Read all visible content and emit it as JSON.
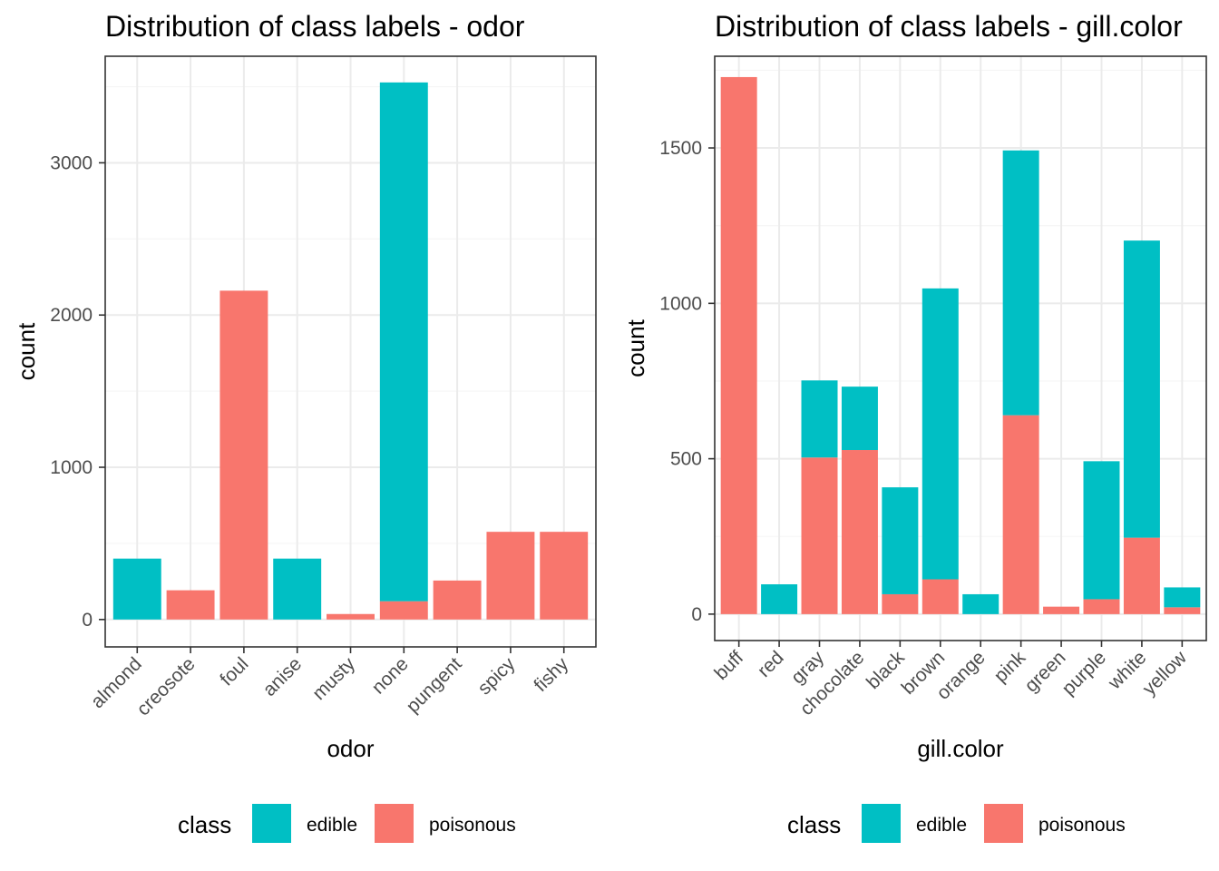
{
  "colors": {
    "edible": "#00BFC4",
    "poisonous": "#F8766D",
    "grid_major": "#ebebeb",
    "grid_minor": "#f5f5f5",
    "panel_border": "#333333"
  },
  "chart_data": [
    {
      "type": "bar",
      "stacked": true,
      "title": "Distribution of class labels - odor",
      "xlabel": "odor",
      "ylabel": "count",
      "ylim": [
        -180,
        3700
      ],
      "yticks": [
        0,
        1000,
        2000,
        3000
      ],
      "categories": [
        "almond",
        "creosote",
        "foul",
        "anise",
        "musty",
        "none",
        "pungent",
        "spicy",
        "fishy"
      ],
      "series": [
        {
          "name": "poisonous",
          "values": [
            0,
            192,
            2160,
            0,
            36,
            120,
            256,
            576,
            576
          ]
        },
        {
          "name": "edible",
          "values": [
            400,
            0,
            0,
            400,
            0,
            3408,
            0,
            0,
            0
          ]
        }
      ],
      "legend": {
        "title": "class",
        "position": "bottom",
        "items": [
          "edible",
          "poisonous"
        ]
      }
    },
    {
      "type": "bar",
      "stacked": true,
      "title": "Distribution of class labels - gill.color",
      "xlabel": "gill.color",
      "ylabel": "count",
      "ylim": [
        -85,
        1795
      ],
      "yticks": [
        0,
        500,
        1000,
        1500
      ],
      "categories": [
        "buff",
        "red",
        "gray",
        "chocolate",
        "black",
        "brown",
        "orange",
        "pink",
        "green",
        "purple",
        "white",
        "yellow"
      ],
      "series": [
        {
          "name": "poisonous",
          "values": [
            1728,
            0,
            504,
            528,
            64,
            112,
            0,
            640,
            24,
            48,
            246,
            22
          ]
        },
        {
          "name": "edible",
          "values": [
            0,
            96,
            248,
            204,
            344,
            936,
            64,
            852,
            0,
            444,
            956,
            64
          ]
        }
      ],
      "legend": {
        "title": "class",
        "position": "bottom",
        "items": [
          "edible",
          "poisonous"
        ]
      }
    }
  ]
}
